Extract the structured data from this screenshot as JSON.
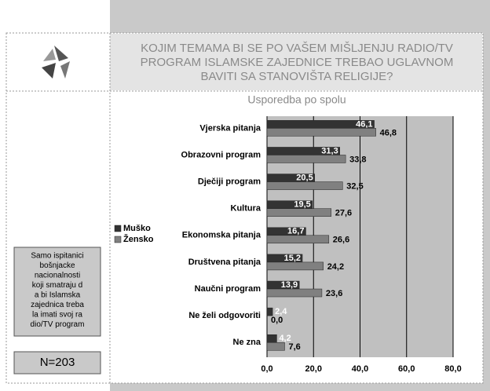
{
  "title_lines": [
    "KOJIM TEMAMA BI SE PO VAŠEM MIŠLJENJU RADIO/TV",
    "PROGRAM ISLAMSKE ZAJEDNICE TREBAO UGLAVNOM",
    "BAVITI  SA STANOVIŠTA RELIGIJE?"
  ],
  "note_lines": [
    "Samo ispitanici",
    "bošnjacke",
    "nacionalnosti",
    "koji smatraju d",
    "a bi Islamska",
    "zajednica treba",
    "la imati svoj ra",
    "dio/TV program"
  ],
  "sample": "N=203",
  "chart_data": {
    "type": "barh",
    "subtitle": "Usporedba po spolu",
    "categories": [
      "Vjerska pitanja",
      "Obrazovni program",
      "Dječiji program",
      "Kultura",
      "Ekonomska pitanja",
      "Društvena pitanja",
      "Naučni program",
      "Ne želi odgovoriti",
      "Ne zna"
    ],
    "series": [
      {
        "name": "Muško",
        "color": "#333333",
        "values": [
          46.1,
          31.3,
          20.5,
          19.5,
          16.7,
          15.2,
          13.9,
          2.4,
          4.2
        ],
        "value_labels": [
          "46,1",
          "31,3",
          "20,5",
          "19,5",
          "16,7",
          "15,2",
          "13,9",
          "2,4",
          "4,2"
        ]
      },
      {
        "name": "Žensko",
        "color": "#808080",
        "values": [
          46.8,
          33.8,
          32.5,
          27.6,
          26.6,
          24.2,
          23.6,
          0.0,
          7.6
        ],
        "value_labels": [
          "46,8",
          "33,8",
          "32,5",
          "27,6",
          "26,6",
          "24,2",
          "23,6",
          "0,0",
          "7,6"
        ]
      }
    ],
    "xlim": [
      0,
      80
    ],
    "xticks": [
      {
        "value": 0,
        "label": "0,0"
      },
      {
        "value": 20,
        "label": "20,0"
      },
      {
        "value": 40,
        "label": "40,0"
      },
      {
        "value": 60,
        "label": "60,0"
      },
      {
        "value": 80,
        "label": "80,0"
      }
    ],
    "grid": true,
    "legend": "left"
  }
}
